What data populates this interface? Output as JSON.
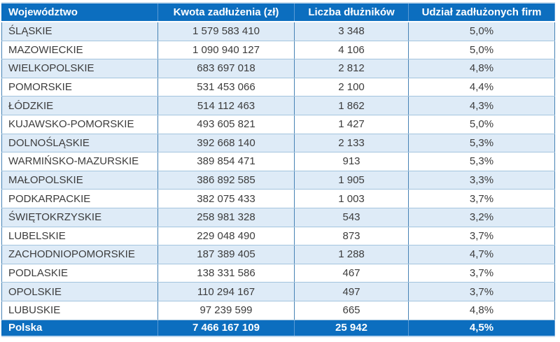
{
  "chart_data": {
    "type": "table",
    "columns": [
      "Województwo",
      "Kwota zadłużenia (zł)",
      "Liczba dłużników",
      "Udział zadłużonych firm"
    ],
    "rows": [
      [
        "ŚLĄSKIE",
        "1 579 583 410",
        "3 348",
        "5,0%"
      ],
      [
        "MAZOWIECKIE",
        "1 090 940 127",
        "4 106",
        "5,0%"
      ],
      [
        "WIELKOPOLSKIE",
        "683 697 018",
        "2 812",
        "4,8%"
      ],
      [
        "POMORSKIE",
        "531 453 066",
        "2 100",
        "4,4%"
      ],
      [
        "ŁÓDZKIE",
        "514 112 463",
        "1 862",
        "4,3%"
      ],
      [
        "KUJAWSKO-POMORSKIE",
        "493 605 821",
        "1 427",
        "5,0%"
      ],
      [
        "DOLNOŚLĄSKIE",
        "392 668 140",
        "2 133",
        "5,3%"
      ],
      [
        "WARMIŃSKO-MAZURSKIE",
        "389 854 471",
        "913",
        "5,3%"
      ],
      [
        "MAŁOPOLSKIE",
        "386 892 585",
        "1 905",
        "3,3%"
      ],
      [
        "PODKARPACKIE",
        "382 075 433",
        "1 003",
        "3,7%"
      ],
      [
        "ŚWIĘTOKRZYSKIE",
        "258 981 328",
        "543",
        "3,2%"
      ],
      [
        "LUBELSKIE",
        "229 048 490",
        "873",
        "3,7%"
      ],
      [
        "ZACHODNIOPOMORSKIE",
        "187 389 405",
        "1 288",
        "4,7%"
      ],
      [
        "PODLASKIE",
        "138 331 586",
        "467",
        "3,7%"
      ],
      [
        "OPOLSKIE",
        "110 294 167",
        "497",
        "3,7%"
      ],
      [
        "LUBUSKIE",
        "97 239 599",
        "665",
        "4,8%"
      ]
    ],
    "footer": [
      "Polska",
      "7 466 167 109",
      "25 942",
      "4,5%"
    ]
  },
  "colors": {
    "header_bg": "#0C6EBF",
    "header_text": "#FFFFFF",
    "row_alt_bg": "#DEEBF7",
    "row_bg": "#FFFFFF",
    "body_text": "#3C3C3C",
    "grid_vertical": "#4682B4",
    "grid_horizontal": "#A3C4DE",
    "header_separator": "#5B9BD5"
  }
}
